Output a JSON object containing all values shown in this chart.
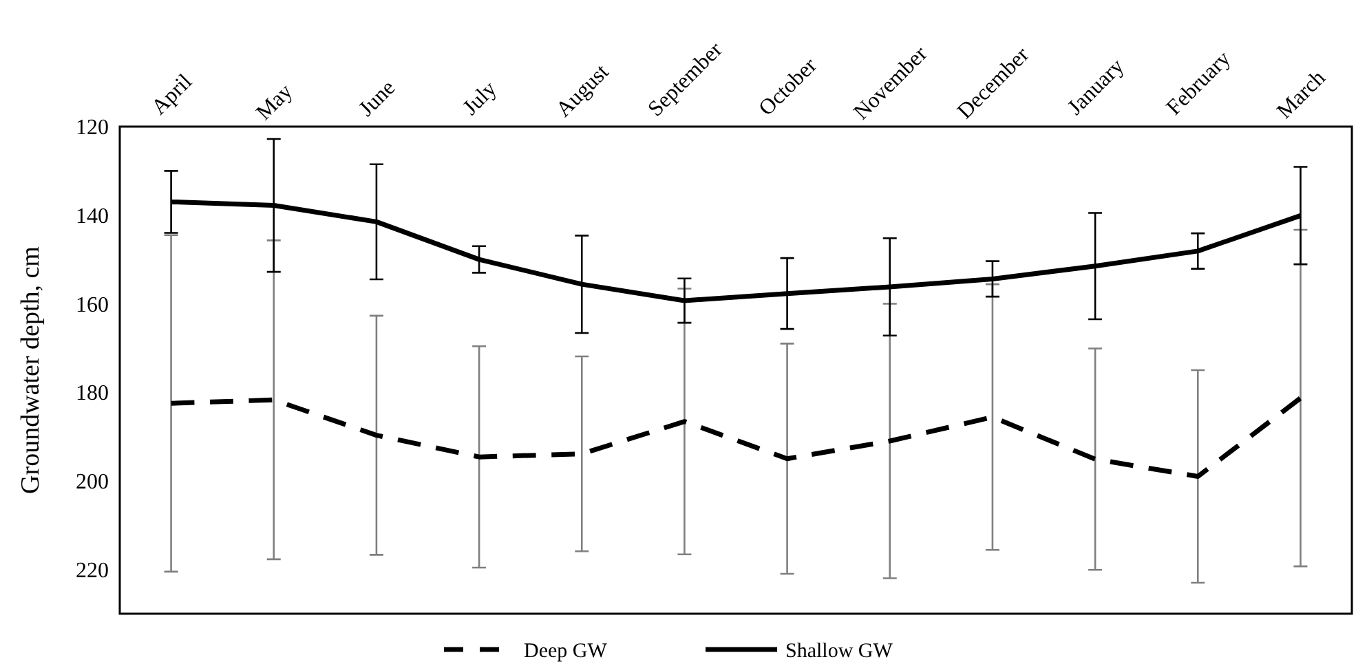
{
  "chart_data": {
    "type": "line",
    "ylabel": "Groundwater depth, cm",
    "categories": [
      "April",
      "May",
      "June",
      "July",
      "August",
      "September",
      "October",
      "November",
      "December",
      "January",
      "February",
      "March"
    ],
    "series": [
      {
        "name": "Deep GW",
        "color": "#000000",
        "line_style": "dashed",
        "values": [
          182.5,
          181.7,
          189.7,
          194.6,
          193.9,
          186.6,
          195.0,
          191.0,
          185.6,
          195.1,
          199.0,
          181.3
        ],
        "errors": [
          38,
          36,
          27,
          25,
          22,
          30,
          26,
          31,
          30,
          25,
          24,
          38
        ]
      },
      {
        "name": "Shallow GW",
        "color": "#000000",
        "line_style": "solid",
        "values": [
          137.0,
          137.8,
          141.5,
          150.0,
          155.6,
          159.3,
          157.7,
          156.2,
          154.4,
          151.5,
          148.1,
          140.1
        ],
        "errors": [
          7,
          15,
          13,
          3,
          11,
          5,
          8,
          11,
          4,
          12,
          4,
          11
        ]
      }
    ],
    "ylim": [
      230,
      120
    ],
    "yticks": [
      120,
      140,
      160,
      180,
      200,
      220
    ],
    "grid": false,
    "legend": "bottom",
    "marker": "none"
  }
}
